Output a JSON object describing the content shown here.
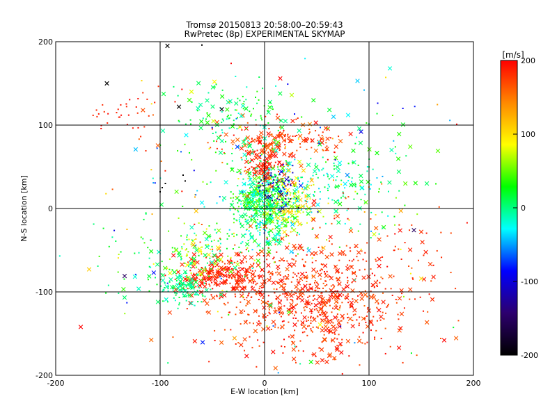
{
  "chart_data": {
    "type": "scatter",
    "title": "Tromsø 20150813 20:58:00–20:59:43",
    "subtitle": "RwPretec (8p) EXPERIMENTAL SKYMAP",
    "xlabel": "E-W location [km]",
    "ylabel": "N-S location [km]",
    "xlim": [
      -200,
      200
    ],
    "ylim": [
      -200,
      200
    ],
    "xticks": [
      "-200",
      "-100",
      "0",
      "100",
      "200"
    ],
    "yticks": [
      "-200",
      "-100",
      "0",
      "100",
      "200"
    ],
    "grid": true,
    "colorbar": {
      "label": "[m/s]",
      "range": [
        -200,
        200
      ],
      "ticks": [
        "-200",
        "-100",
        "0",
        "100",
        "200"
      ],
      "colormap": [
        "#000000",
        "#2d006e",
        "#0000ff",
        "#00ffff",
        "#00ff00",
        "#ffff00",
        "#ff8800",
        "#ff0000"
      ]
    },
    "points": [
      {
        "x": -151,
        "y": 150,
        "v": -200,
        "m": "x"
      },
      {
        "x": -93,
        "y": 195,
        "v": -200,
        "m": "x"
      },
      {
        "x": -82,
        "y": 122,
        "v": -200,
        "m": "x"
      },
      {
        "x": -41,
        "y": 119,
        "v": -200,
        "m": "x"
      },
      {
        "x": -60,
        "y": 196,
        "v": -200,
        "m": "d"
      },
      {
        "x": -98,
        "y": 25,
        "v": -200,
        "m": "d"
      },
      {
        "x": -95,
        "y": 30,
        "v": -200,
        "m": "d"
      },
      {
        "x": -76,
        "y": 33,
        "v": -200,
        "m": "d"
      },
      {
        "x": -78,
        "y": 40,
        "v": -200,
        "m": "d"
      },
      {
        "x": -100,
        "y": 20,
        "v": -200,
        "m": "d"
      },
      {
        "x": 120,
        "y": 168,
        "v": -20,
        "m": "x"
      },
      {
        "x": 89,
        "y": 153,
        "v": -40,
        "m": "x"
      },
      {
        "x": 66,
        "y": 110,
        "v": -40,
        "m": "x"
      },
      {
        "x": 80,
        "y": 112,
        "v": -30,
        "m": "x"
      },
      {
        "x": -75,
        "y": 88,
        "v": -30,
        "m": "x"
      },
      {
        "x": -60,
        "y": 7,
        "v": -30,
        "m": "x"
      },
      {
        "x": 143,
        "y": -26,
        "v": -150,
        "m": "x"
      },
      {
        "x": 150,
        "y": -28,
        "v": 180,
        "m": "x"
      },
      {
        "x": -134,
        "y": -81,
        "v": -150,
        "m": "x"
      },
      {
        "x": -168,
        "y": -73,
        "v": 110,
        "m": "x"
      },
      {
        "x": 150,
        "y": -84,
        "v": 100,
        "m": "x"
      },
      {
        "x": 184,
        "y": 101,
        "v": 200,
        "m": "d"
      },
      {
        "x": -176,
        "y": -142,
        "v": 200,
        "m": "x"
      },
      {
        "x": 172,
        "y": -158,
        "v": 200,
        "m": "x"
      },
      {
        "x": 26,
        "y": 136,
        "v": 70,
        "m": "x"
      },
      {
        "x": -70,
        "y": 140,
        "v": 80,
        "m": "x"
      },
      {
        "x": -48,
        "y": 152,
        "v": 90,
        "m": "x"
      },
      {
        "x": -72,
        "y": 130,
        "v": 40,
        "m": "x"
      },
      {
        "x": 15,
        "y": 156,
        "v": 200,
        "m": "x"
      },
      {
        "x": -32,
        "y": 174,
        "v": 200,
        "m": "d"
      }
    ],
    "clusters": [
      {
        "cx": 0,
        "cy": 5,
        "sx": 14,
        "sy": 22,
        "n": 560,
        "vmin": -40,
        "vmax": 60,
        "xfrac": 0.25
      },
      {
        "cx": 25,
        "cy": 5,
        "sx": 14,
        "sy": 16,
        "n": 150,
        "vmin": 50,
        "vmax": 130,
        "xfrac": 0.25
      },
      {
        "cx": 12,
        "cy": 25,
        "sx": 10,
        "sy": 12,
        "n": 80,
        "vmin": -160,
        "vmax": -70,
        "xfrac": 0.1
      },
      {
        "cx": 0,
        "cy": 55,
        "sx": 10,
        "sy": 10,
        "n": 90,
        "vmin": 170,
        "vmax": 200,
        "xfrac": 0.45
      },
      {
        "cx": 15,
        "cy": 80,
        "sx": 30,
        "sy": 12,
        "n": 170,
        "vmin": 150,
        "vmax": 200,
        "xfrac": 0.35
      },
      {
        "cx": 55,
        "cy": 25,
        "sx": 25,
        "sy": 20,
        "n": 120,
        "vmin": -40,
        "vmax": 20,
        "xfrac": 0.25
      },
      {
        "cx": -20,
        "cy": 70,
        "sx": 15,
        "sy": 30,
        "n": 60,
        "vmin": -20,
        "vmax": 40,
        "xfrac": 0.2
      },
      {
        "cx": 40,
        "cy": -110,
        "sx": 45,
        "sy": 35,
        "n": 750,
        "vmin": 160,
        "vmax": 200,
        "xfrac": 0.3
      },
      {
        "cx": -40,
        "cy": -80,
        "sx": 22,
        "sy": 12,
        "n": 240,
        "vmin": 170,
        "vmax": 200,
        "xfrac": 0.45
      },
      {
        "cx": -80,
        "cy": -95,
        "sx": 12,
        "sy": 10,
        "n": 120,
        "vmin": -20,
        "vmax": 20,
        "xfrac": 0.35
      },
      {
        "cx": -60,
        "cy": -55,
        "sx": 25,
        "sy": 15,
        "n": 120,
        "vmin": -30,
        "vmax": 100,
        "xfrac": 0.3
      },
      {
        "cx": -30,
        "cy": 120,
        "sx": 35,
        "sy": 18,
        "n": 90,
        "vmin": -20,
        "vmax": 40,
        "xfrac": 0.4
      },
      {
        "cx": -130,
        "cy": 115,
        "sx": 25,
        "sy": 12,
        "n": 35,
        "vmin": 180,
        "vmax": 200,
        "xfrac": 0.0
      },
      {
        "cx": 110,
        "cy": 30,
        "sx": 25,
        "sy": 35,
        "n": 50,
        "vmin": -10,
        "vmax": 60,
        "xfrac": 0.4
      },
      {
        "cx": 0,
        "cy": 0,
        "sx": 80,
        "sy": 80,
        "n": 260,
        "vmin": -100,
        "vmax": 200,
        "xfrac": 0.2
      },
      {
        "cx": 120,
        "cy": -60,
        "sx": 40,
        "sy": 40,
        "n": 60,
        "vmin": 170,
        "vmax": 200,
        "xfrac": 0.3
      },
      {
        "cx": -130,
        "cy": -60,
        "sx": 25,
        "sy": 30,
        "n": 30,
        "vmin": -10,
        "vmax": 50,
        "xfrac": 0.2
      }
    ]
  }
}
